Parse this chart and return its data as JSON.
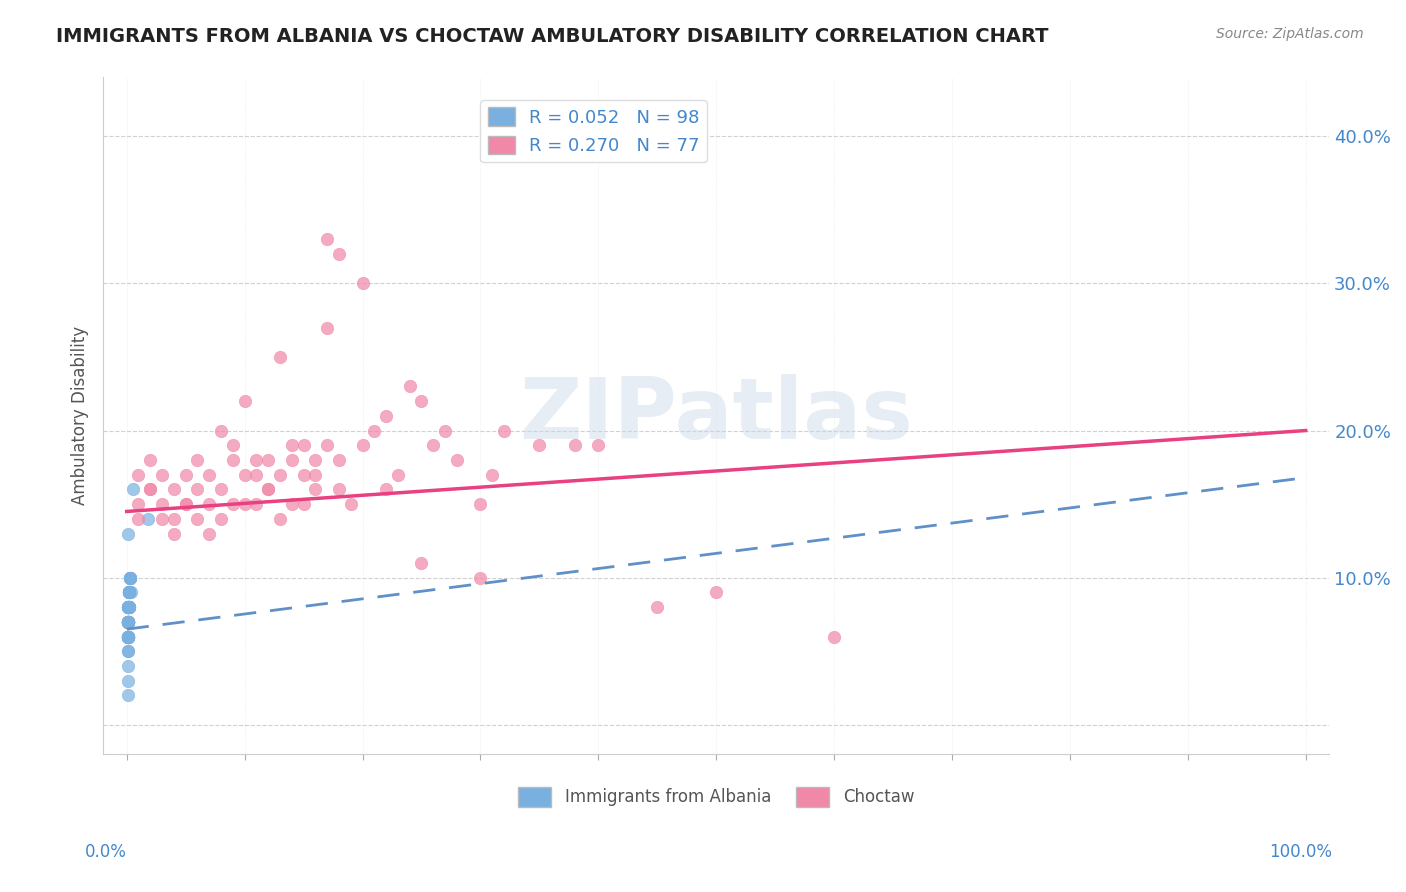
{
  "title": "IMMIGRANTS FROM ALBANIA VS CHOCTAW AMBULATORY DISABILITY CORRELATION CHART",
  "source": "Source: ZipAtlas.com",
  "ylabel": "Ambulatory Disability",
  "legend_label1": "Immigrants from Albania",
  "legend_label2": "Choctaw",
  "legend_r1": "R = 0.052",
  "legend_n1": "N = 98",
  "legend_r2": "R = 0.270",
  "legend_n2": "N = 77",
  "blue_x": [
    0.001,
    0.001,
    0.002,
    0.001,
    0.003,
    0.002,
    0.001,
    0.001,
    0.002,
    0.003,
    0.001,
    0.001,
    0.001,
    0.002,
    0.001,
    0.002,
    0.001,
    0.003,
    0.002,
    0.001,
    0.001,
    0.002,
    0.001,
    0.001,
    0.001,
    0.003,
    0.002,
    0.001,
    0.001,
    0.001,
    0.001,
    0.001,
    0.002,
    0.001,
    0.001,
    0.001,
    0.002,
    0.001,
    0.002,
    0.001,
    0.001,
    0.002,
    0.001,
    0.003,
    0.002,
    0.001,
    0.001,
    0.001,
    0.002,
    0.001,
    0.001,
    0.001,
    0.001,
    0.002,
    0.001,
    0.001,
    0.001,
    0.002,
    0.001,
    0.001,
    0.003,
    0.001,
    0.002,
    0.001,
    0.001,
    0.001,
    0.002,
    0.001,
    0.003,
    0.001,
    0.001,
    0.002,
    0.001,
    0.001,
    0.004,
    0.001,
    0.001,
    0.002,
    0.001,
    0.001,
    0.002,
    0.001,
    0.001,
    0.001,
    0.002,
    0.001,
    0.018,
    0.005,
    0.001,
    0.001,
    0.001,
    0.001,
    0.001,
    0.001,
    0.001,
    0.001,
    0.001,
    0.001
  ],
  "blue_y": [
    0.07,
    0.08,
    0.09,
    0.07,
    0.1,
    0.08,
    0.06,
    0.07,
    0.09,
    0.1,
    0.08,
    0.07,
    0.06,
    0.08,
    0.07,
    0.09,
    0.06,
    0.1,
    0.08,
    0.07,
    0.07,
    0.08,
    0.06,
    0.07,
    0.08,
    0.1,
    0.09,
    0.07,
    0.06,
    0.08,
    0.07,
    0.06,
    0.09,
    0.07,
    0.08,
    0.06,
    0.09,
    0.07,
    0.08,
    0.06,
    0.07,
    0.08,
    0.06,
    0.1,
    0.09,
    0.07,
    0.06,
    0.08,
    0.09,
    0.07,
    0.06,
    0.07,
    0.08,
    0.09,
    0.07,
    0.06,
    0.07,
    0.08,
    0.06,
    0.07,
    0.1,
    0.07,
    0.09,
    0.06,
    0.07,
    0.08,
    0.09,
    0.06,
    0.1,
    0.07,
    0.06,
    0.08,
    0.07,
    0.06,
    0.09,
    0.07,
    0.08,
    0.09,
    0.06,
    0.07,
    0.08,
    0.06,
    0.07,
    0.13,
    0.09,
    0.06,
    0.14,
    0.16,
    0.05,
    0.04,
    0.07,
    0.08,
    0.03,
    0.06,
    0.07,
    0.08,
    0.05,
    0.02
  ],
  "pink_x": [
    0.01,
    0.01,
    0.02,
    0.02,
    0.03,
    0.03,
    0.04,
    0.04,
    0.05,
    0.05,
    0.06,
    0.06,
    0.07,
    0.07,
    0.08,
    0.08,
    0.09,
    0.09,
    0.1,
    0.1,
    0.11,
    0.11,
    0.12,
    0.12,
    0.13,
    0.13,
    0.14,
    0.14,
    0.15,
    0.15,
    0.16,
    0.16,
    0.17,
    0.17,
    0.18,
    0.18,
    0.19,
    0.2,
    0.21,
    0.22,
    0.23,
    0.24,
    0.25,
    0.26,
    0.27,
    0.28,
    0.3,
    0.31,
    0.32,
    0.35,
    0.01,
    0.02,
    0.03,
    0.04,
    0.05,
    0.06,
    0.07,
    0.08,
    0.09,
    0.1,
    0.11,
    0.12,
    0.13,
    0.14,
    0.15,
    0.16,
    0.17,
    0.18,
    0.2,
    0.22,
    0.25,
    0.3,
    0.38,
    0.4,
    0.45,
    0.5,
    0.6
  ],
  "pink_y": [
    0.15,
    0.17,
    0.16,
    0.18,
    0.15,
    0.17,
    0.14,
    0.16,
    0.15,
    0.17,
    0.16,
    0.18,
    0.15,
    0.17,
    0.16,
    0.2,
    0.19,
    0.18,
    0.15,
    0.22,
    0.18,
    0.17,
    0.16,
    0.18,
    0.17,
    0.25,
    0.19,
    0.18,
    0.17,
    0.19,
    0.16,
    0.18,
    0.27,
    0.19,
    0.16,
    0.18,
    0.15,
    0.19,
    0.2,
    0.21,
    0.17,
    0.23,
    0.22,
    0.19,
    0.2,
    0.18,
    0.15,
    0.17,
    0.2,
    0.19,
    0.14,
    0.16,
    0.14,
    0.13,
    0.15,
    0.14,
    0.13,
    0.14,
    0.15,
    0.17,
    0.15,
    0.16,
    0.14,
    0.15,
    0.15,
    0.17,
    0.33,
    0.32,
    0.3,
    0.16,
    0.11,
    0.1,
    0.19,
    0.19,
    0.08,
    0.09,
    0.06
  ],
  "blue_line_x": [
    0.0,
    1.0
  ],
  "blue_line_y": [
    0.065,
    0.168
  ],
  "pink_line_x": [
    0.0,
    1.0
  ],
  "pink_line_y": [
    0.145,
    0.2
  ],
  "blue_color": "#7ab0e0",
  "pink_color": "#f088a8",
  "blue_line_color": "#6090c8",
  "pink_line_color": "#e84080",
  "background_color": "#ffffff",
  "grid_color": "#cccccc",
  "title_color": "#222222",
  "axis_label_color": "#555555",
  "tick_label_color": "#4488cc",
  "source_color": "#888888",
  "watermark": "ZIPatlas",
  "xlim": [
    -0.02,
    1.02
  ],
  "ylim": [
    -0.02,
    0.44
  ],
  "ytick_vals": [
    0.0,
    0.1,
    0.2,
    0.3,
    0.4
  ],
  "ytick_labels": [
    "",
    "10.0%",
    "20.0%",
    "30.0%",
    "40.0%"
  ],
  "xtick_vals": [
    0.0,
    0.1,
    0.2,
    0.3,
    0.4,
    0.5,
    0.6,
    0.7,
    0.8,
    0.9,
    1.0
  ]
}
